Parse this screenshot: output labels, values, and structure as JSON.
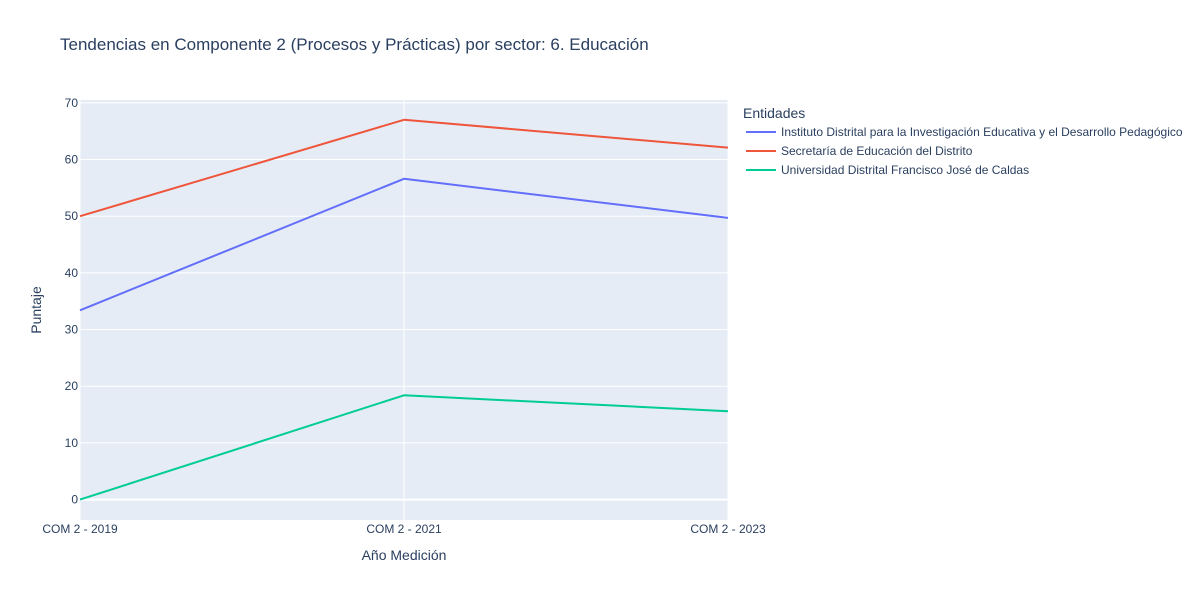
{
  "chart_data": {
    "type": "line",
    "title": "Tendencias en Componente 2 (Procesos y Prácticas) por sector: 6. Educación",
    "xlabel": "Año Medición",
    "ylabel": "Puntaje",
    "categories": [
      "COM 2 - 2019",
      "COM 2 - 2021",
      "COM 2 - 2023"
    ],
    "ylim": [
      -3.6,
      70.5
    ],
    "yticks": [
      0,
      10,
      20,
      30,
      40,
      50,
      60,
      70
    ],
    "grid": true,
    "legend": {
      "title": "Entidades",
      "placement": "right"
    },
    "series": [
      {
        "name": "Instituto Distrital para la Investigación Educativa y el Desarrollo Pedagógico",
        "color": "#636efa",
        "values": [
          33.4,
          56.6,
          49.7
        ]
      },
      {
        "name": "Secretaría de Educación del Distrito",
        "color": "#ef553b",
        "values": [
          50.0,
          67.0,
          62.1
        ]
      },
      {
        "name": "Universidad Distrital Francisco José de Caldas",
        "color": "#00cc96",
        "values": [
          0.0,
          18.4,
          15.6
        ]
      }
    ],
    "colors": {
      "plot_background": "#e5ecf6",
      "gridline": "#ffffff",
      "text": "#2a3f5f",
      "tick_text": "#2a3f5f"
    }
  }
}
